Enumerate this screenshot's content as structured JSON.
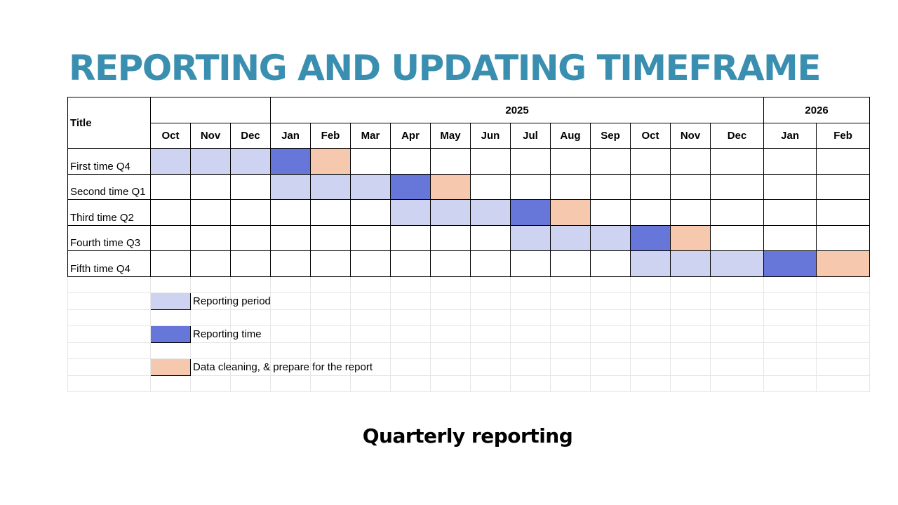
{
  "page_title": "REPORTING AND UPDATING TIMEFRAME",
  "footer_title": "Quarterly reporting",
  "table": {
    "title_header": "Title",
    "year_groups": [
      {
        "label": "",
        "span": 3
      },
      {
        "label": "2025",
        "span": 12
      },
      {
        "label": "2026",
        "span": 2
      }
    ],
    "months": [
      "Oct",
      "Nov",
      "Dec",
      "Jan",
      "Feb",
      "Mar",
      "Apr",
      "May",
      "Jun",
      "Jul",
      "Aug",
      "Sep",
      "Oct",
      "Nov",
      "Dec",
      "Jan",
      "Feb"
    ],
    "rows": [
      {
        "label": "First time Q4",
        "cells": [
          "P",
          "P",
          "P",
          "R",
          "C",
          "",
          "",
          "",
          "",
          "",
          "",
          "",
          "",
          "",
          "",
          "",
          ""
        ]
      },
      {
        "label": "Second time Q1",
        "cells": [
          "",
          "",
          "",
          "P",
          "P",
          "P",
          "R",
          "C",
          "",
          "",
          "",
          "",
          "",
          "",
          "",
          "",
          ""
        ]
      },
      {
        "label": "Third time Q2",
        "cells": [
          "",
          "",
          "",
          "",
          "",
          "",
          "P",
          "P",
          "P",
          "R",
          "C",
          "",
          "",
          "",
          "",
          "",
          ""
        ]
      },
      {
        "label": "Fourth time Q3",
        "cells": [
          "",
          "",
          "",
          "",
          "",
          "",
          "",
          "",
          "",
          "P",
          "P",
          "P",
          "R",
          "C",
          "",
          "",
          ""
        ]
      },
      {
        "label": "Fifth time Q4",
        "cells": [
          "",
          "",
          "",
          "",
          "",
          "",
          "",
          "",
          "",
          "",
          "",
          "",
          "P",
          "P",
          "P",
          "R",
          "C"
        ]
      }
    ]
  },
  "legend": [
    {
      "key": "P",
      "label": "Reporting period"
    },
    {
      "key": "R",
      "label": "Reporting time"
    },
    {
      "key": "C",
      "label": "Data cleaning, & prepare for the report"
    }
  ],
  "colors": {
    "title": "#3a8fb0",
    "P": "#cdd3f0",
    "R": "#6677d9",
    "C": "#f6c8ad"
  }
}
